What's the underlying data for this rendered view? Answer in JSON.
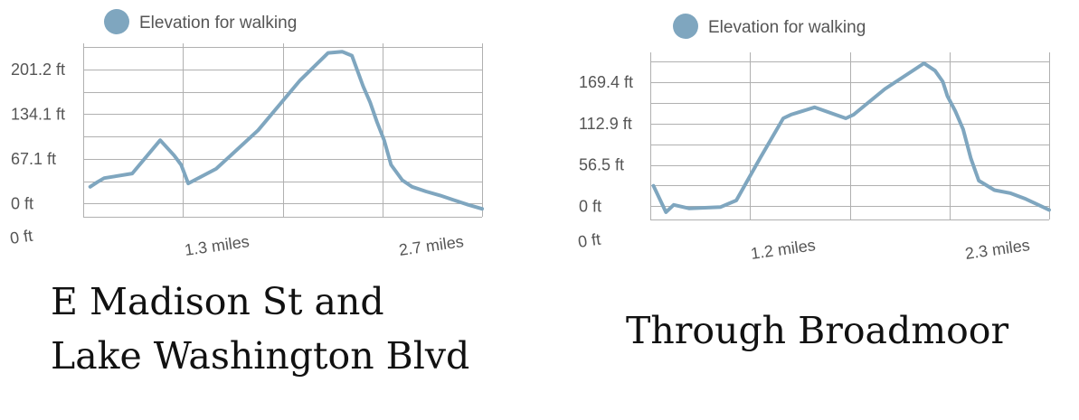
{
  "chart_data": [
    {
      "type": "line",
      "legend": {
        "label": "Elevation for walking",
        "color": "#7fa6bf",
        "placement": "top-left"
      },
      "ytick_labels": [
        "201.2 ft",
        "134.1 ft",
        "67.1 ft",
        "0 ft"
      ],
      "ytick_values": [
        201.2,
        134.1,
        67.1,
        0
      ],
      "xtick_labels": [
        "0 ft",
        "1.3 miles",
        "2.7 miles"
      ],
      "xtick_values": [
        0,
        1.3,
        2.7
      ],
      "xlim": [
        0,
        2.85
      ],
      "ylim": [
        -20,
        235
      ],
      "grid": true,
      "series": [
        {
          "color": "#7fa6bf",
          "x": [
            0.05,
            0.1,
            0.15,
            0.35,
            0.55,
            0.65,
            0.7,
            0.75,
            0.95,
            1.25,
            1.55,
            1.75,
            1.85,
            1.92,
            2.0,
            2.05,
            2.1,
            2.15,
            2.2,
            2.28,
            2.35,
            2.45,
            2.55,
            2.65,
            2.75,
            2.85
          ],
          "y": [
            25,
            32,
            38,
            45,
            95,
            72,
            58,
            30,
            52,
            110,
            185,
            226,
            228,
            222,
            176,
            152,
            122,
            95,
            58,
            35,
            25,
            18,
            12,
            5,
            -2,
            -8
          ]
        }
      ],
      "caption": [
        "E Madison St and",
        "Lake Washington Blvd"
      ]
    },
    {
      "type": "line",
      "legend": {
        "label": "Elevation for walking",
        "color": "#7fa6bf",
        "placement": "top-left"
      },
      "ytick_labels": [
        "169.4 ft",
        "112.9 ft",
        "56.5 ft",
        "0 ft"
      ],
      "ytick_values": [
        169.4,
        112.9,
        56.5,
        0
      ],
      "xtick_labels": [
        "0 ft",
        "1.2 miles",
        "2.3 miles"
      ],
      "xtick_values": [
        0,
        1.2,
        2.3
      ],
      "xlim": [
        0,
        2.55
      ],
      "ylim": [
        -18,
        205
      ],
      "grid": true,
      "series": [
        {
          "color": "#7fa6bf",
          "x": [
            0.02,
            0.1,
            0.15,
            0.25,
            0.45,
            0.55,
            0.7,
            0.85,
            0.9,
            1.05,
            1.25,
            1.3,
            1.5,
            1.75,
            1.82,
            1.87,
            1.9,
            1.95,
            2.0,
            2.05,
            2.1,
            2.2,
            2.3,
            2.4,
            2.55
          ],
          "y": [
            28,
            -8,
            2,
            -3,
            -1,
            8,
            65,
            120,
            125,
            135,
            120,
            125,
            160,
            195,
            185,
            170,
            150,
            130,
            105,
            65,
            35,
            22,
            18,
            10,
            -5
          ]
        }
      ],
      "caption": [
        "Through Broadmoor"
      ]
    }
  ]
}
